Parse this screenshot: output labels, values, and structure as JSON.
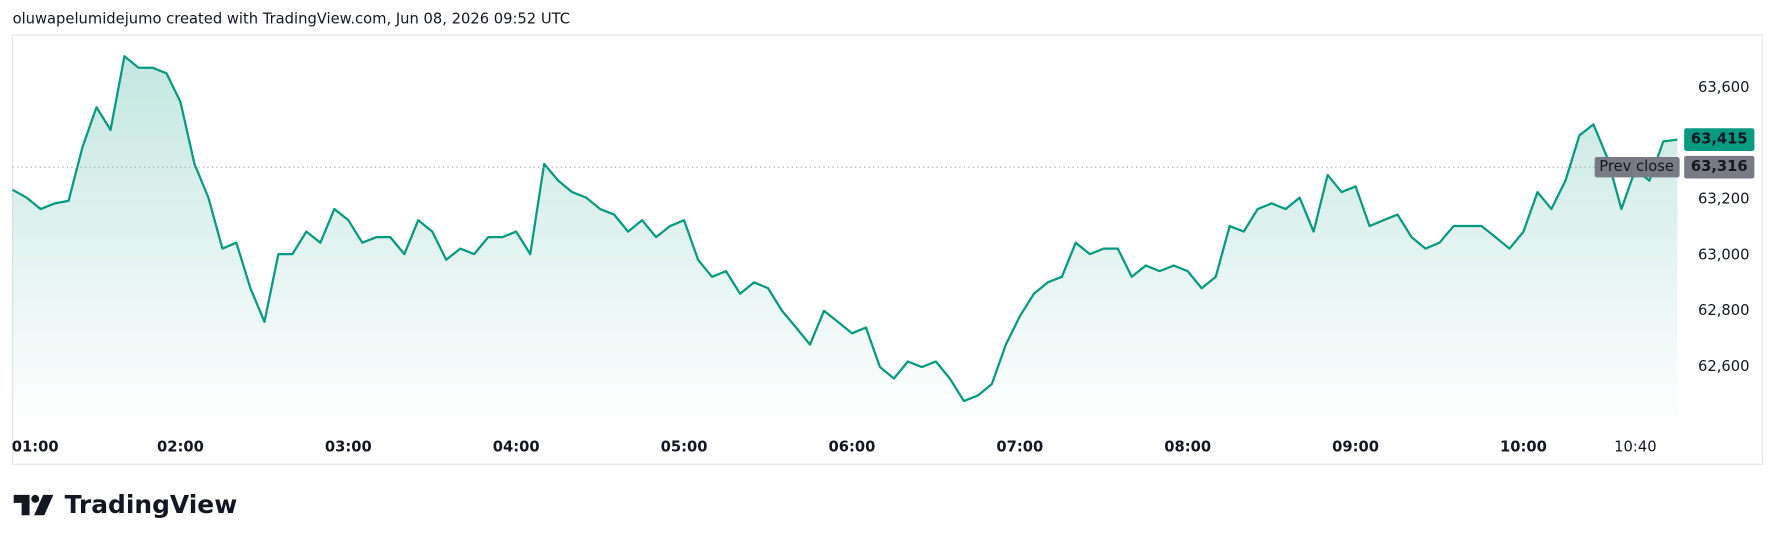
{
  "chart_data": {
    "type": "line",
    "title": "oluwapelumidejumo created with TradingView.com, Jun 08, 2026 09:52 UTC",
    "brand": "TradingView",
    "color": "#089981",
    "x": [
      "01:00",
      "01:05",
      "01:10",
      "01:15",
      "01:20",
      "01:25",
      "01:30",
      "01:35",
      "01:40",
      "01:45",
      "01:50",
      "01:55",
      "02:00",
      "02:05",
      "02:10",
      "02:15",
      "02:20",
      "02:25",
      "02:30",
      "02:35",
      "02:40",
      "02:45",
      "02:50",
      "02:55",
      "03:00",
      "03:05",
      "03:10",
      "03:15",
      "03:20",
      "03:25",
      "03:30",
      "03:35",
      "03:40",
      "03:45",
      "03:50",
      "03:55",
      "04:00",
      "04:05",
      "04:10",
      "04:15",
      "04:20",
      "04:25",
      "04:30",
      "04:35",
      "04:40",
      "04:45",
      "04:50",
      "04:55",
      "05:00",
      "05:05",
      "05:10",
      "05:15",
      "05:20",
      "05:25",
      "05:30",
      "05:35",
      "05:40",
      "05:45",
      "05:50",
      "05:55",
      "06:00",
      "06:05",
      "06:10",
      "06:15",
      "06:20",
      "06:25",
      "06:30",
      "06:35",
      "06:40",
      "06:45",
      "06:50",
      "06:55",
      "07:00",
      "07:05",
      "07:10",
      "07:15",
      "07:20",
      "07:25",
      "07:30",
      "07:35",
      "07:40",
      "07:45",
      "07:50",
      "07:55",
      "08:00",
      "08:05",
      "08:10",
      "08:15",
      "08:20",
      "08:25",
      "08:30",
      "08:35",
      "08:40",
      "08:45",
      "08:50",
      "08:55",
      "09:00",
      "09:05",
      "09:10",
      "09:15",
      "09:20",
      "09:25",
      "09:30",
      "09:35",
      "09:40",
      "09:45",
      "09:50",
      "09:55",
      "10:00",
      "10:05",
      "10:10",
      "10:15",
      "10:20",
      "10:25",
      "10:30",
      "10:35",
      "10:40",
      "10:45",
      "10:50",
      "10:55"
    ],
    "values": [
      63235,
      63207,
      63166,
      63186,
      63195,
      63389,
      63531,
      63450,
      63714,
      63673,
      63673,
      63653,
      63551,
      63328,
      63207,
      63024,
      63045,
      62882,
      62761,
      63004,
      63004,
      63085,
      63045,
      63166,
      63126,
      63045,
      63065,
      63065,
      63004,
      63126,
      63085,
      62984,
      63024,
      63004,
      63065,
      63065,
      63085,
      63004,
      63328,
      63268,
      63227,
      63207,
      63166,
      63146,
      63085,
      63126,
      63065,
      63105,
      63126,
      62984,
      62923,
      62943,
      62862,
      62903,
      62882,
      62801,
      62741,
      62680,
      62801,
      62761,
      62720,
      62741,
      62599,
      62558,
      62619,
      62599,
      62619,
      62558,
      62477,
      62497,
      62538,
      62680,
      62781,
      62862,
      62903,
      62923,
      63045,
      63004,
      63024,
      63024,
      62923,
      62963,
      62943,
      62963,
      62943,
      62882,
      62923,
      63105,
      63085,
      63166,
      63186,
      63166,
      63207,
      63085,
      63288,
      63227,
      63247,
      63105,
      63126,
      63146,
      63065,
      63024,
      63045,
      63105,
      63105,
      63105,
      63065,
      63024,
      63085,
      63227,
      63166,
      63268,
      63430,
      63470,
      63349,
      63166,
      63308,
      63268,
      63409,
      63415
    ],
    "xlim": [
      "01:00",
      "10:55"
    ],
    "xticks": [
      "01:00",
      "02:00",
      "03:00",
      "04:00",
      "05:00",
      "06:00",
      "07:00",
      "08:00",
      "09:00",
      "10:00",
      "10:40"
    ],
    "ylim": [
      62380,
      63790
    ],
    "yticks": [
      {
        "value": 62600,
        "label": "62,600"
      },
      {
        "value": 62800,
        "label": "62,800"
      },
      {
        "value": 63000,
        "label": "63,000"
      },
      {
        "value": 63200,
        "label": "63,200"
      },
      {
        "value": 63600,
        "label": "63,600"
      }
    ],
    "last_price": {
      "value": 63415,
      "label": "63,415"
    },
    "prev_close": {
      "name": "Prev close",
      "value": 63316,
      "label": "63,316"
    }
  }
}
